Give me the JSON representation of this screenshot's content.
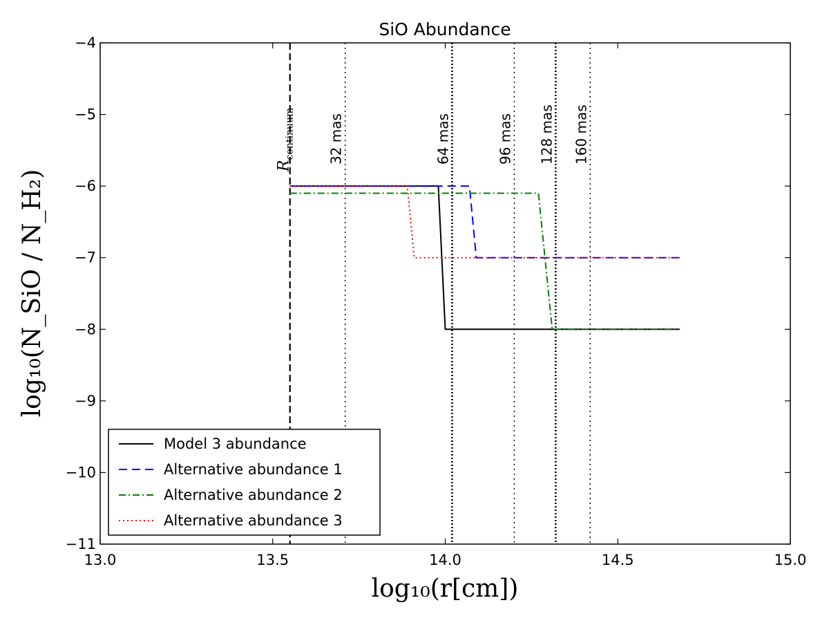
{
  "chart_data": {
    "type": "line",
    "title": "SiO Abundance",
    "xlabel": "log₁₀(r[cm])",
    "ylabel": "log₁₀(N_SiO / N_H₂)",
    "xlim": [
      13.0,
      15.0
    ],
    "ylim": [
      -11,
      -4
    ],
    "xticks": [
      13.0,
      13.5,
      14.0,
      14.5,
      15.0
    ],
    "xtick_labels": [
      "13.0",
      "13.5",
      "14.0",
      "14.5",
      "15.0"
    ],
    "yticks": [
      -4,
      -5,
      -6,
      -7,
      -8,
      -9,
      -10,
      -11
    ],
    "ytick_labels": [
      "−4",
      "−5",
      "−6",
      "−7",
      "−8",
      "−9",
      "−10",
      "−11"
    ],
    "series": [
      {
        "name": "Model 3 abundance",
        "color": "#000000",
        "style": "solid",
        "x": [
          13.55,
          13.98,
          14.0,
          14.68
        ],
        "y": [
          -6.0,
          -6.0,
          -8.0,
          -8.0
        ]
      },
      {
        "name": "Alternative abundance 1",
        "color": "#0000ff",
        "style": "dashed",
        "x": [
          13.55,
          14.07,
          14.09,
          14.68
        ],
        "y": [
          -6.0,
          -6.0,
          -7.0,
          -7.0
        ]
      },
      {
        "name": "Alternative abundance 2",
        "color": "#008000",
        "style": "dashdot",
        "x": [
          13.55,
          14.27,
          14.31,
          14.68
        ],
        "y": [
          -6.1,
          -6.1,
          -8.0,
          -8.0
        ]
      },
      {
        "name": "Alternative abundance 3",
        "color": "#ff0000",
        "style": "dotted",
        "x": [
          13.55,
          13.89,
          13.91,
          14.68
        ],
        "y": [
          -6.0,
          -6.0,
          -7.0,
          -7.0
        ]
      }
    ],
    "vlines": [
      {
        "x": 13.55,
        "label": "R_continuum",
        "style": "dashed"
      },
      {
        "x": 13.71,
        "label": "32 mas",
        "style": "dotted"
      },
      {
        "x": 14.02,
        "label": "64 mas",
        "style": "dotted-bold"
      },
      {
        "x": 14.2,
        "label": "96 mas",
        "style": "dotted"
      },
      {
        "x": 14.32,
        "label": "128 mas",
        "style": "dotted-bold"
      },
      {
        "x": 14.42,
        "label": "160 mas",
        "style": "dotted"
      }
    ],
    "legend_position": "lower-left"
  },
  "annotations": {
    "r_continuum_main": "R",
    "r_continuum_sub": "continuum"
  }
}
